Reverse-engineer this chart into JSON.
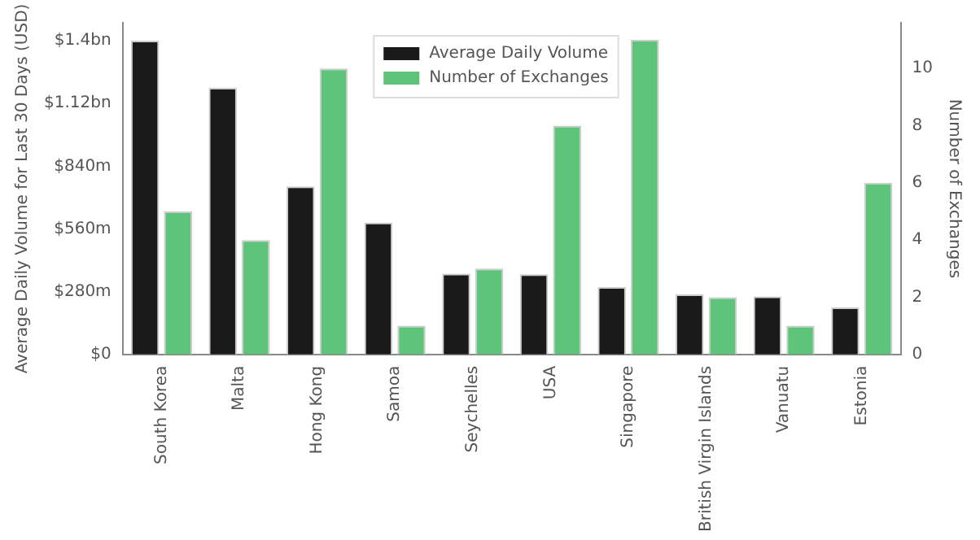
{
  "chart_data": {
    "type": "bar",
    "ylabel": "Average Daily Volume for Last 30 Days (USD)",
    "y2label": "Number of Exchanges",
    "categories": [
      "South Korea",
      "Malta",
      "Hong Kong",
      "Samoa",
      "Seychelles",
      "USA",
      "Singapore",
      "British Virgin Islands",
      "Vanuatu",
      "Estonia"
    ],
    "series": [
      {
        "name": "Average Daily Volume",
        "color": "#1a1a1a",
        "values": [
          1400000000,
          1190000000,
          750000000,
          588000000,
          360000000,
          358000000,
          300000000,
          268000000,
          259000000,
          210000000
        ]
      },
      {
        "name": "Number of Exchanges",
        "color": "#5ec47a",
        "axis": "y2",
        "values": [
          5,
          4,
          10,
          1,
          3,
          8,
          11,
          2,
          1,
          6
        ]
      }
    ],
    "ylim": [
      0,
      1480000000
    ],
    "yticks": [
      {
        "value": 0,
        "label": "$0"
      },
      {
        "value": 280000000,
        "label": "$280m"
      },
      {
        "value": 560000000,
        "label": "$560m"
      },
      {
        "value": 840000000,
        "label": "$840m"
      },
      {
        "value": 1120000000,
        "label": "$1.12bn"
      },
      {
        "value": 1400000000,
        "label": "$1.4bn"
      }
    ],
    "y2lim": [
      0,
      11.6
    ],
    "y2ticks": [
      0,
      2,
      4,
      6,
      8,
      10
    ],
    "grid": false,
    "legend": "top"
  }
}
